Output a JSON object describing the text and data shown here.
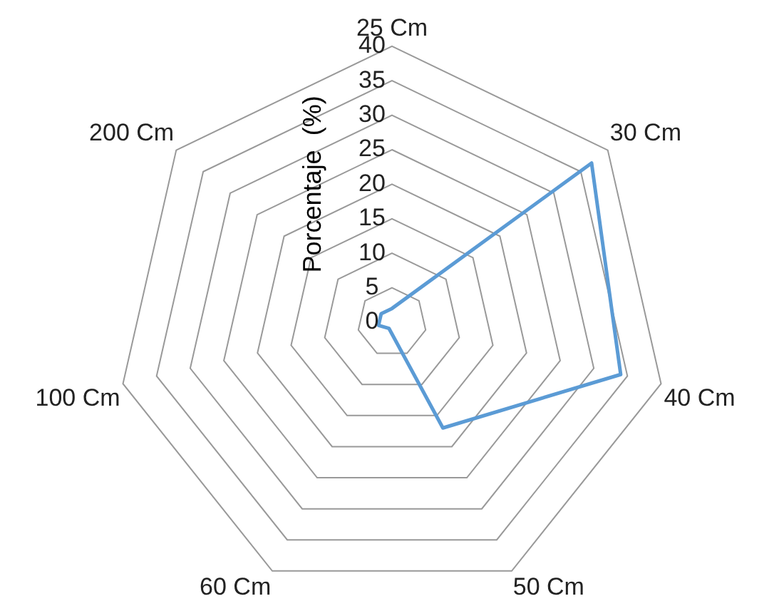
{
  "chart_data": {
    "type": "radar",
    "ylabel": "Porcentaje  (%)",
    "categories": [
      "25 Cm",
      "30 Cm",
      "40 Cm",
      "50 Cm",
      "60 Cm",
      "100 Cm",
      "200 Cm"
    ],
    "series": [
      {
        "color": "#5b9bd5",
        "values": [
          2,
          37,
          34,
          17,
          1,
          2,
          2
        ]
      }
    ],
    "ylim": [
      0,
      40
    ],
    "yticks": [
      0,
      5,
      10,
      15,
      20,
      25,
      30,
      35,
      40
    ],
    "grid": true,
    "legend": false,
    "marker": "none"
  }
}
